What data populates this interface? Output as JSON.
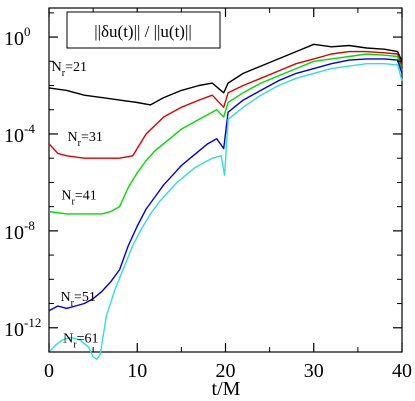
{
  "chart_data": {
    "type": "line",
    "title": "",
    "xlabel": "t/M",
    "ylabel": "",
    "xlim": [
      0,
      40
    ],
    "ylim_log10": [
      -13,
      1.2
    ],
    "y_scale": "log",
    "grid": false,
    "legend": {
      "position": "top-right",
      "text": "||δu(t)|| / ||u(t)||"
    },
    "x_ticks": [
      {
        "value": 0,
        "label": "0"
      },
      {
        "value": 10,
        "label": "10"
      },
      {
        "value": 20,
        "label": "20"
      },
      {
        "value": 30,
        "label": "30"
      },
      {
        "value": 40,
        "label": "40"
      }
    ],
    "y_ticks": [
      {
        "exp": 0,
        "base": "10",
        "label": "0"
      },
      {
        "exp": -4,
        "base": "10",
        "label": "-4"
      },
      {
        "exp": -8,
        "base": "10",
        "label": "-8"
      },
      {
        "exp": -12,
        "base": "10",
        "label": "-12"
      }
    ],
    "series": [
      {
        "name": "N_r=21",
        "label_main": "N",
        "label_sub": "r",
        "label_tail": "=21",
        "label_at": [
          0.3,
          -1.4
        ],
        "color": "#000000",
        "x": [
          0,
          2,
          4,
          6,
          8,
          10,
          11.5,
          13,
          15,
          17,
          18.5,
          19.8,
          20.3,
          22,
          24,
          26,
          28,
          30,
          32,
          34,
          36,
          38,
          39.5,
          40
        ],
        "y": [
          -2.1,
          -2.2,
          -2.4,
          -2.5,
          -2.6,
          -2.7,
          -2.8,
          -2.5,
          -2.2,
          -2.0,
          -1.9,
          -2.3,
          -1.9,
          -1.5,
          -1.2,
          -0.9,
          -0.6,
          -0.3,
          -0.4,
          -0.35,
          -0.45,
          -0.5,
          -0.6,
          -1.0
        ]
      },
      {
        "name": "N_r=31",
        "label_main": "N",
        "label_sub": "r",
        "label_tail": "=31",
        "label_at": [
          2.1,
          -4.3
        ],
        "color": "#dd0000",
        "x": [
          0,
          1,
          2,
          4,
          6,
          8,
          9.5,
          11,
          13,
          15,
          17,
          18.5,
          19.8,
          20.3,
          22,
          24,
          26,
          28,
          30,
          32,
          34,
          36,
          38,
          39.5,
          40
        ],
        "y": [
          -4.4,
          -4.8,
          -4.9,
          -5.0,
          -5.0,
          -5.0,
          -4.9,
          -4.0,
          -3.3,
          -2.9,
          -2.6,
          -2.4,
          -2.9,
          -2.3,
          -2.0,
          -1.7,
          -1.4,
          -1.1,
          -0.9,
          -0.7,
          -0.6,
          -0.6,
          -0.65,
          -0.7,
          -1.2
        ]
      },
      {
        "name": "N_r=41",
        "label_main": "N",
        "label_sub": "r",
        "label_tail": "=41",
        "label_at": [
          1.4,
          -6.7
        ],
        "color": "#00dd00",
        "x": [
          0,
          2,
          4,
          6,
          7,
          8,
          9,
          10,
          11,
          12,
          13,
          14,
          15,
          16,
          17,
          18,
          19,
          19.8,
          20.3,
          22,
          24,
          26,
          28,
          30,
          32,
          34,
          36,
          38,
          39.5,
          40
        ],
        "y": [
          -7.2,
          -7.3,
          -7.3,
          -7.3,
          -7.2,
          -7.0,
          -6.2,
          -5.6,
          -5.1,
          -4.7,
          -4.4,
          -4.1,
          -3.8,
          -3.6,
          -3.4,
          -3.2,
          -3.0,
          -3.3,
          -2.7,
          -2.3,
          -1.9,
          -1.6,
          -1.3,
          -1.0,
          -0.9,
          -0.8,
          -0.7,
          -0.75,
          -0.8,
          -1.4
        ]
      },
      {
        "name": "N_r=51",
        "label_main": "N",
        "label_sub": "r",
        "label_tail": "=51",
        "label_at": [
          1.3,
          -10.9
        ],
        "color": "#0000dd",
        "x": [
          0,
          1,
          2,
          3,
          4,
          5,
          6,
          7,
          8,
          9,
          10,
          11,
          12,
          13,
          14,
          15,
          16,
          17,
          18,
          19,
          19.8,
          20.3,
          22,
          24,
          26,
          28,
          30,
          32,
          34,
          36,
          38,
          39.5,
          40
        ],
        "y": [
          -11.3,
          -11.1,
          -11.2,
          -11.1,
          -11.0,
          -10.8,
          -10.5,
          -10.1,
          -9.6,
          -8.6,
          -7.8,
          -7.1,
          -6.6,
          -6.1,
          -5.7,
          -5.3,
          -5.0,
          -4.7,
          -4.4,
          -4.2,
          -4.6,
          -3.1,
          -2.6,
          -2.2,
          -1.8,
          -1.5,
          -1.3,
          -1.1,
          -0.95,
          -0.9,
          -0.9,
          -0.95,
          -1.5
        ]
      },
      {
        "name": "N_r=61",
        "label_main": "N",
        "label_sub": "r",
        "label_tail": "=61",
        "label_at": [
          1.6,
          -12.6
        ],
        "color": "#33dddd",
        "x": [
          0,
          0.8,
          1.5,
          2.5,
          3.5,
          4.5,
          5.0,
          5.4,
          5.8,
          6.5,
          7.5,
          8.5,
          9.5,
          10.5,
          11.5,
          12.5,
          13.5,
          14.5,
          15.5,
          16.5,
          17.5,
          18.5,
          19.5,
          19.9,
          20.3,
          22,
          24,
          26,
          28,
          30,
          32,
          34,
          36,
          38,
          39.5,
          40
        ],
        "y": [
          -13.0,
          -12.7,
          -12.5,
          -12.4,
          -12.5,
          -12.8,
          -13.2,
          -13.3,
          -13.1,
          -11.5,
          -10.4,
          -9.5,
          -8.6,
          -7.9,
          -7.3,
          -6.8,
          -6.4,
          -6.0,
          -5.7,
          -5.4,
          -5.2,
          -5.0,
          -4.9,
          -5.7,
          -3.4,
          -2.9,
          -2.4,
          -2.0,
          -1.7,
          -1.5,
          -1.3,
          -1.2,
          -1.1,
          -1.1,
          -1.15,
          -1.8
        ]
      }
    ]
  }
}
